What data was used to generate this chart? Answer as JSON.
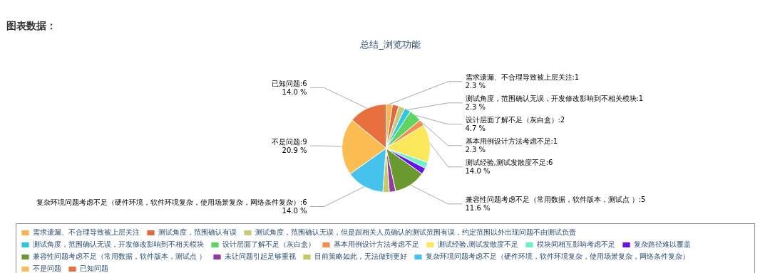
{
  "chart_data": {
    "type": "pie",
    "title": "总结_浏览功能",
    "annotations": [
      "图表数据："
    ],
    "categories": [
      "需求遗漏、不合理导致被上层关注",
      "测试角度，范围确认有误",
      "测试角度，范围确认无误，但是跟相关人员确认的测试范围有误，约定范围以外出现问题不由测试负责",
      "测试角度，范围确认无误，开发修改影响到不相关模块",
      "设计层面了解不足（灰白盒）",
      "基本用例设计方法考虑不足",
      "测试经验,测试发散度不足",
      "模块间相互影响考虑不足",
      "复杂路径难以覆盖",
      "兼容性问题考虑不足（常用数据，软件版本，测试点 ）",
      "未让问题引起足够重视",
      "目前策略如此，无法做到更好",
      "复杂环境问题考虑不足（硬件环境，软件环境复杂，使用场景复杂，网络条件复杂）",
      "不是问题",
      "已知问题"
    ],
    "values": [
      1,
      1,
      1,
      1,
      2,
      1,
      6,
      1,
      1,
      5,
      1,
      1,
      6,
      9,
      6
    ],
    "colors": [
      "#f9b451",
      "#e2673e",
      "#c9c97c",
      "#2ec7e0",
      "#5fd662",
      "#f58f50",
      "#fbe75a",
      "#6ef0c8",
      "#6a10ea",
      "#6a9930",
      "#8e3a9e",
      "#c6c862",
      "#45c3ec",
      "#fbbd52",
      "#e8703f"
    ],
    "value_labels": [
      ":1\n2.3 %",
      null,
      null,
      ":1\n2.3 %",
      ":2\n4.7 %",
      ":1\n2.3 %",
      ":6\n14.0 %",
      null,
      null,
      ":5\n11.6 %",
      null,
      null,
      ":6\n14.0 %",
      ":9\n20.9 %",
      ":6\n14.0 %"
    ],
    "legend": "bottom"
  }
}
